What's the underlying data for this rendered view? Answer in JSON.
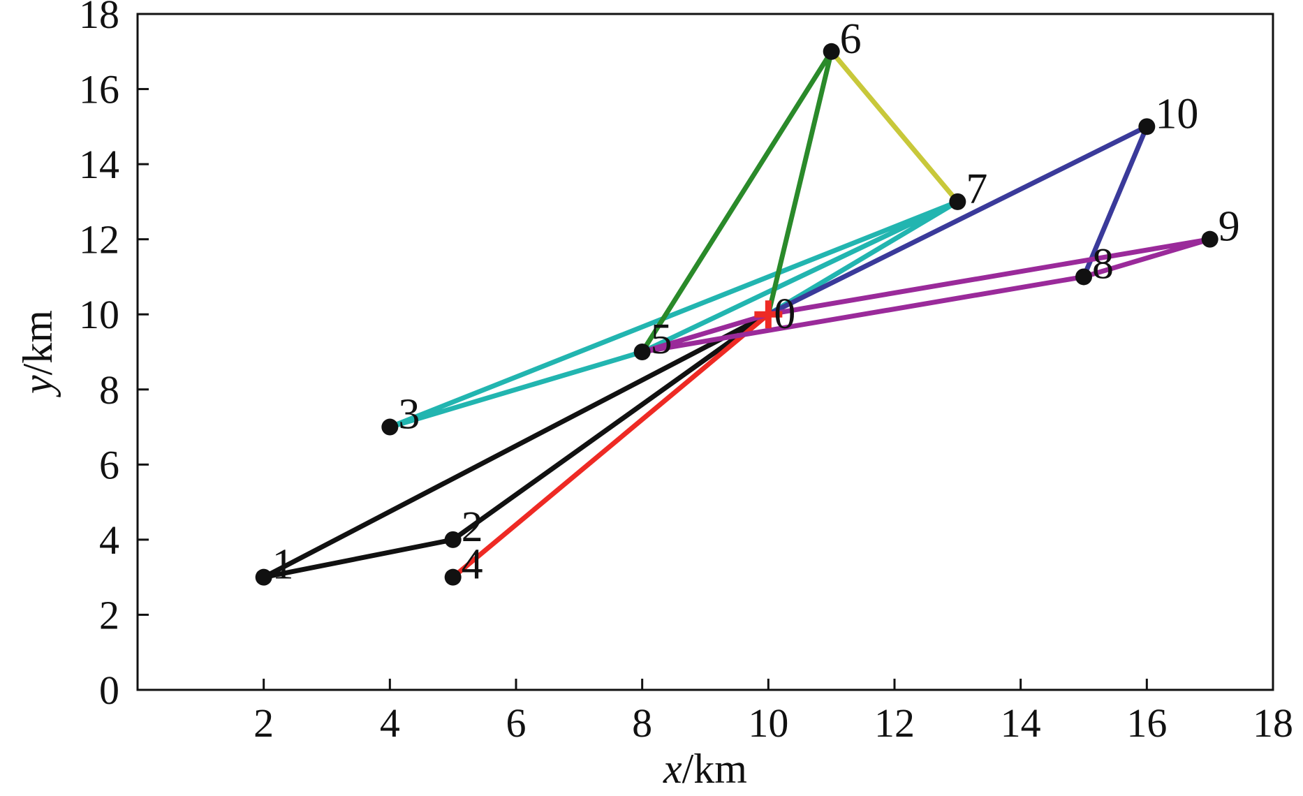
{
  "chart_data": {
    "type": "line",
    "xlabel": {
      "var": "x",
      "unit": "/km"
    },
    "ylabel": {
      "var": "y",
      "unit": "/km"
    },
    "xlim": [
      0,
      18
    ],
    "ylim": [
      0,
      18
    ],
    "xticks": [
      2,
      4,
      6,
      8,
      10,
      12,
      14,
      16,
      18
    ],
    "yticks": [
      0,
      2,
      4,
      6,
      8,
      10,
      12,
      14,
      16,
      18
    ],
    "grid": false,
    "depot": {
      "label": "0",
      "x": 10,
      "y": 10,
      "marker": "plus",
      "color": "#ee2a24"
    },
    "nodes": [
      {
        "label": "1",
        "x": 2,
        "y": 3
      },
      {
        "label": "2",
        "x": 5,
        "y": 4
      },
      {
        "label": "3",
        "x": 4,
        "y": 7
      },
      {
        "label": "4",
        "x": 5,
        "y": 3
      },
      {
        "label": "5",
        "x": 8,
        "y": 9
      },
      {
        "label": "6",
        "x": 11,
        "y": 17
      },
      {
        "label": "7",
        "x": 13,
        "y": 13
      },
      {
        "label": "8",
        "x": 15,
        "y": 11
      },
      {
        "label": "9",
        "x": 17,
        "y": 12
      },
      {
        "label": "10",
        "x": 16,
        "y": 15
      }
    ],
    "series": [
      {
        "color": "#111111",
        "path": [
          [
            10,
            10
          ],
          [
            2,
            3
          ],
          [
            5,
            4
          ],
          [
            10,
            10
          ]
        ]
      },
      {
        "color": "#ee2a24",
        "path": [
          [
            10,
            10
          ],
          [
            5,
            3
          ],
          [
            10,
            10
          ]
        ]
      },
      {
        "color": "#22b5b0",
        "path": [
          [
            10,
            10
          ],
          [
            13,
            13
          ],
          [
            4,
            7
          ],
          [
            8,
            9
          ],
          [
            13,
            13
          ]
        ]
      },
      {
        "color": "#2a8a2a",
        "path": [
          [
            10,
            10
          ],
          [
            11,
            17
          ],
          [
            8,
            9
          ]
        ]
      },
      {
        "color": "#c8c83a",
        "path": [
          [
            11,
            17
          ],
          [
            13,
            13
          ]
        ]
      },
      {
        "color": "#3a3a9a",
        "path": [
          [
            10,
            10
          ],
          [
            16,
            15
          ],
          [
            15,
            11
          ]
        ]
      },
      {
        "color": "#9a2a9a",
        "path": [
          [
            8,
            9
          ],
          [
            10,
            10
          ],
          [
            17,
            12
          ],
          [
            15,
            11
          ],
          [
            8,
            9
          ]
        ]
      }
    ]
  }
}
